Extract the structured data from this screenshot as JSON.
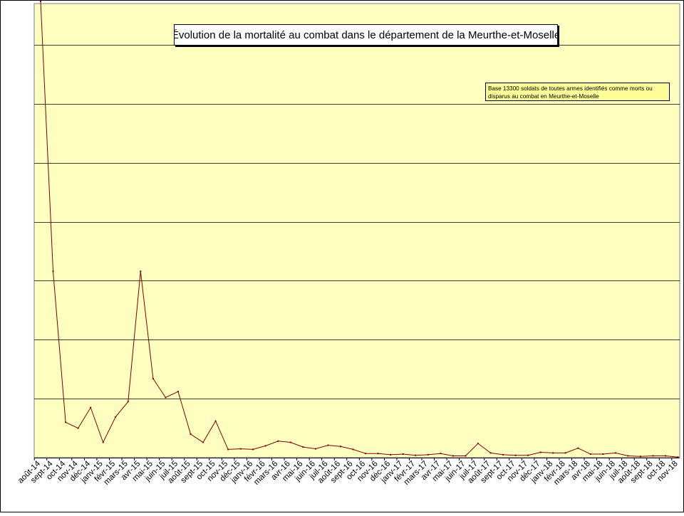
{
  "chart_data": {
    "type": "line",
    "title": "Évolution de la mortalité au combat dans le département de la Meurthe-et-Moselle",
    "annotation": "Base 13300 soldats de toutes armes identifiés comme morts ou disparus au combat en Meurthe-et-Moselle",
    "ylim": [
      0,
      3850
    ],
    "y_gridlines": [
      500,
      1000,
      1500,
      2000,
      2500,
      3000,
      3500
    ],
    "grid": true,
    "legend": "none",
    "line_color": "#800000",
    "plot_background": "#ffffc0",
    "x": [
      "août-14",
      "sept-14",
      "oct-14",
      "nov-14",
      "déc-14",
      "janv-15",
      "févr-15",
      "mars-15",
      "avr-15",
      "mai-15",
      "juin-15",
      "juil-15",
      "août-15",
      "sept-15",
      "oct-15",
      "nov-15",
      "déc-15",
      "janv-16",
      "févr-16",
      "mars-16",
      "avr-16",
      "mai-16",
      "juin-16",
      "juil-16",
      "août-16",
      "sept-16",
      "oct-16",
      "nov-16",
      "déc-16",
      "janv-17",
      "févr-17",
      "mars-17",
      "avr-17",
      "mai-17",
      "juin-17",
      "juil-17",
      "août-17",
      "sept-17",
      "oct-17",
      "nov-17",
      "déc-17",
      "janv-18",
      "févr-18",
      "mars-18",
      "avr-18",
      "mai-18",
      "juin-18",
      "juil-18",
      "août-18",
      "sept-18",
      "oct-18",
      "nov-18"
    ],
    "values": [
      3870,
      1580,
      300,
      250,
      425,
      130,
      345,
      475,
      1580,
      670,
      510,
      560,
      200,
      130,
      310,
      70,
      75,
      70,
      100,
      140,
      130,
      90,
      75,
      105,
      95,
      70,
      35,
      35,
      25,
      30,
      20,
      25,
      35,
      15,
      15,
      120,
      40,
      25,
      20,
      20,
      45,
      40,
      40,
      80,
      30,
      30,
      40,
      15,
      10,
      15,
      15,
      5
    ]
  }
}
